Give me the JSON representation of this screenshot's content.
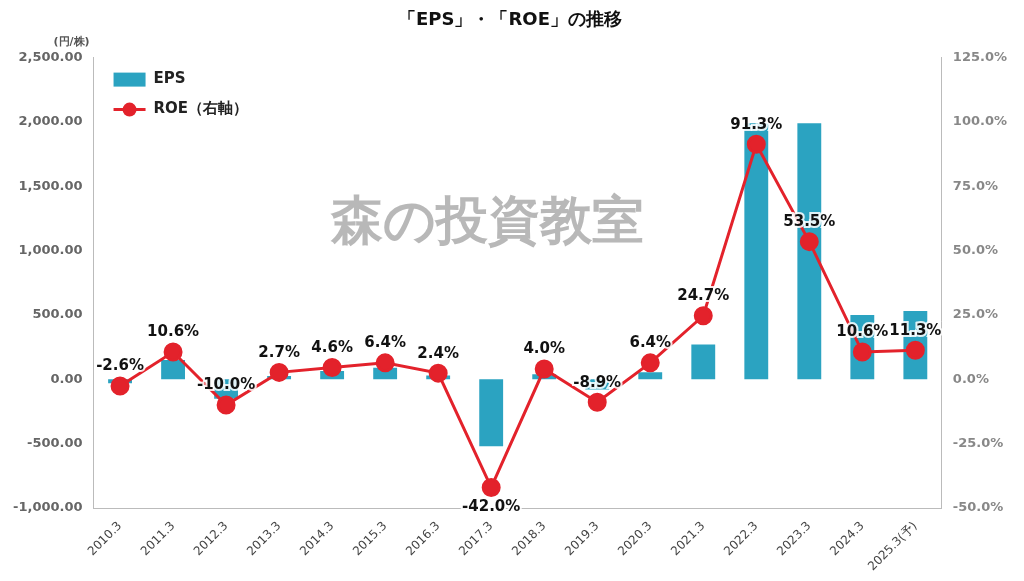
{
  "chart_data": {
    "type": "bar",
    "title": "「EPS」・「ROE」の推移",
    "ylabel": "(円/株)",
    "annotation": "森の投資教室",
    "categories": [
      "2010.3",
      "2011.3",
      "2012.3",
      "2013.3",
      "2014.3",
      "2015.3",
      "2016.3",
      "2017.3",
      "2018.3",
      "2019.3",
      "2020.3",
      "2021.3",
      "2022.3",
      "2023.3",
      "2024.3",
      "2025.3(予)"
    ],
    "series": [
      {
        "name": "EPS",
        "type": "bar",
        "color": "#2ba3c1",
        "values": [
          -30,
          150,
          -150,
          25,
          65,
          90,
          30,
          -520,
          40,
          -80,
          55,
          270,
          1990,
          1990,
          500,
          530
        ]
      },
      {
        "name": "ROE（右軸）",
        "type": "line",
        "color": "#e3222b",
        "marker": "circle",
        "line_style": "solid",
        "axis": "y2",
        "data_labels": true,
        "values": [
          -2.6,
          10.6,
          -10.0,
          2.7,
          4.6,
          6.4,
          2.4,
          -42.0,
          4.0,
          -8.9,
          6.4,
          24.7,
          91.3,
          53.5,
          10.6,
          11.3
        ],
        "value_labels": [
          "-2.6%",
          "10.6%",
          "-10.0%",
          "2.7%",
          "4.6%",
          "6.4%",
          "2.4%",
          "-42.0%",
          "4.0%",
          "-8.9%",
          "6.4%",
          "24.7%",
          "91.3%",
          "53.5%",
          "10.6%",
          "11.3%"
        ]
      }
    ],
    "ylim": [
      -1000,
      2500
    ],
    "yticks": [
      {
        "value": -1000,
        "label": "-1,000.00"
      },
      {
        "value": -500,
        "label": "-500.00"
      },
      {
        "value": 0,
        "label": "0.00"
      },
      {
        "value": 500,
        "label": "500.00"
      },
      {
        "value": 1000,
        "label": "1,000.00"
      },
      {
        "value": 1500,
        "label": "1,500.00"
      },
      {
        "value": 2000,
        "label": "2,000.00"
      },
      {
        "value": 2500,
        "label": "2,500.00"
      }
    ],
    "y2lim": [
      -50,
      125
    ],
    "y2ticks": [
      {
        "value": -50,
        "label": "-50.0%"
      },
      {
        "value": -25,
        "label": "-25.0%"
      },
      {
        "value": 0,
        "label": "0.0%"
      },
      {
        "value": 25,
        "label": "25.0%"
      },
      {
        "value": 50,
        "label": "50.0%"
      },
      {
        "value": 75,
        "label": "75.0%"
      },
      {
        "value": 100,
        "label": "100.0%"
      },
      {
        "value": 125,
        "label": "125.0%"
      }
    ],
    "grid": false,
    "legend": "upper left"
  }
}
